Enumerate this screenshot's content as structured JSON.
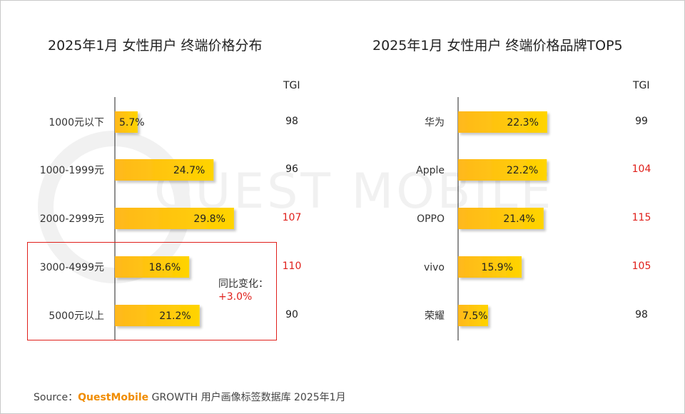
{
  "chart_data": [
    {
      "type": "bar",
      "orientation": "horizontal",
      "title": "2025年1月 女性用户 终端价格分布",
      "categories": [
        "1000元以下",
        "1000-1999元",
        "2000-2999元",
        "3000-4999元",
        "5000元以上"
      ],
      "values": [
        5.7,
        24.7,
        29.8,
        18.6,
        21.2
      ],
      "value_labels": [
        "5.7%",
        "24.7%",
        "29.8%",
        "18.6%",
        "21.2%"
      ],
      "tgi_label": "TGI",
      "tgi": [
        "98",
        "96",
        "107",
        "110",
        "90"
      ],
      "tgi_highlight": [
        false,
        false,
        true,
        true,
        false
      ],
      "unit": "%"
    },
    {
      "type": "bar",
      "orientation": "horizontal",
      "title": "2025年1月 女性用户 终端价格品牌TOP5",
      "categories": [
        "华为",
        "Apple",
        "OPPO",
        "vivo",
        "荣耀"
      ],
      "values": [
        22.3,
        22.2,
        21.4,
        15.9,
        7.5
      ],
      "value_labels": [
        "22.3%",
        "22.2%",
        "21.4%",
        "15.9%",
        "7.5%"
      ],
      "tgi_label": "TGI",
      "tgi": [
        "99",
        "104",
        "115",
        "105",
        "98"
      ],
      "tgi_highlight": [
        false,
        true,
        true,
        true,
        false
      ],
      "unit": "%"
    }
  ],
  "annotation": {
    "label": "同比变化：",
    "value": "+3.0%"
  },
  "source": {
    "prefix": "Source：",
    "brand": "QuestMobile",
    "text": "GROWTH 用户画像标签数据库 2025年1月"
  },
  "watermark": "QUEST MOBILE",
  "colors": {
    "bar_start": "#ffb81c",
    "bar_end": "#ffd400",
    "highlight_red": "#e0201b",
    "axis": "#222222",
    "brand_orange": "#f08c00"
  }
}
